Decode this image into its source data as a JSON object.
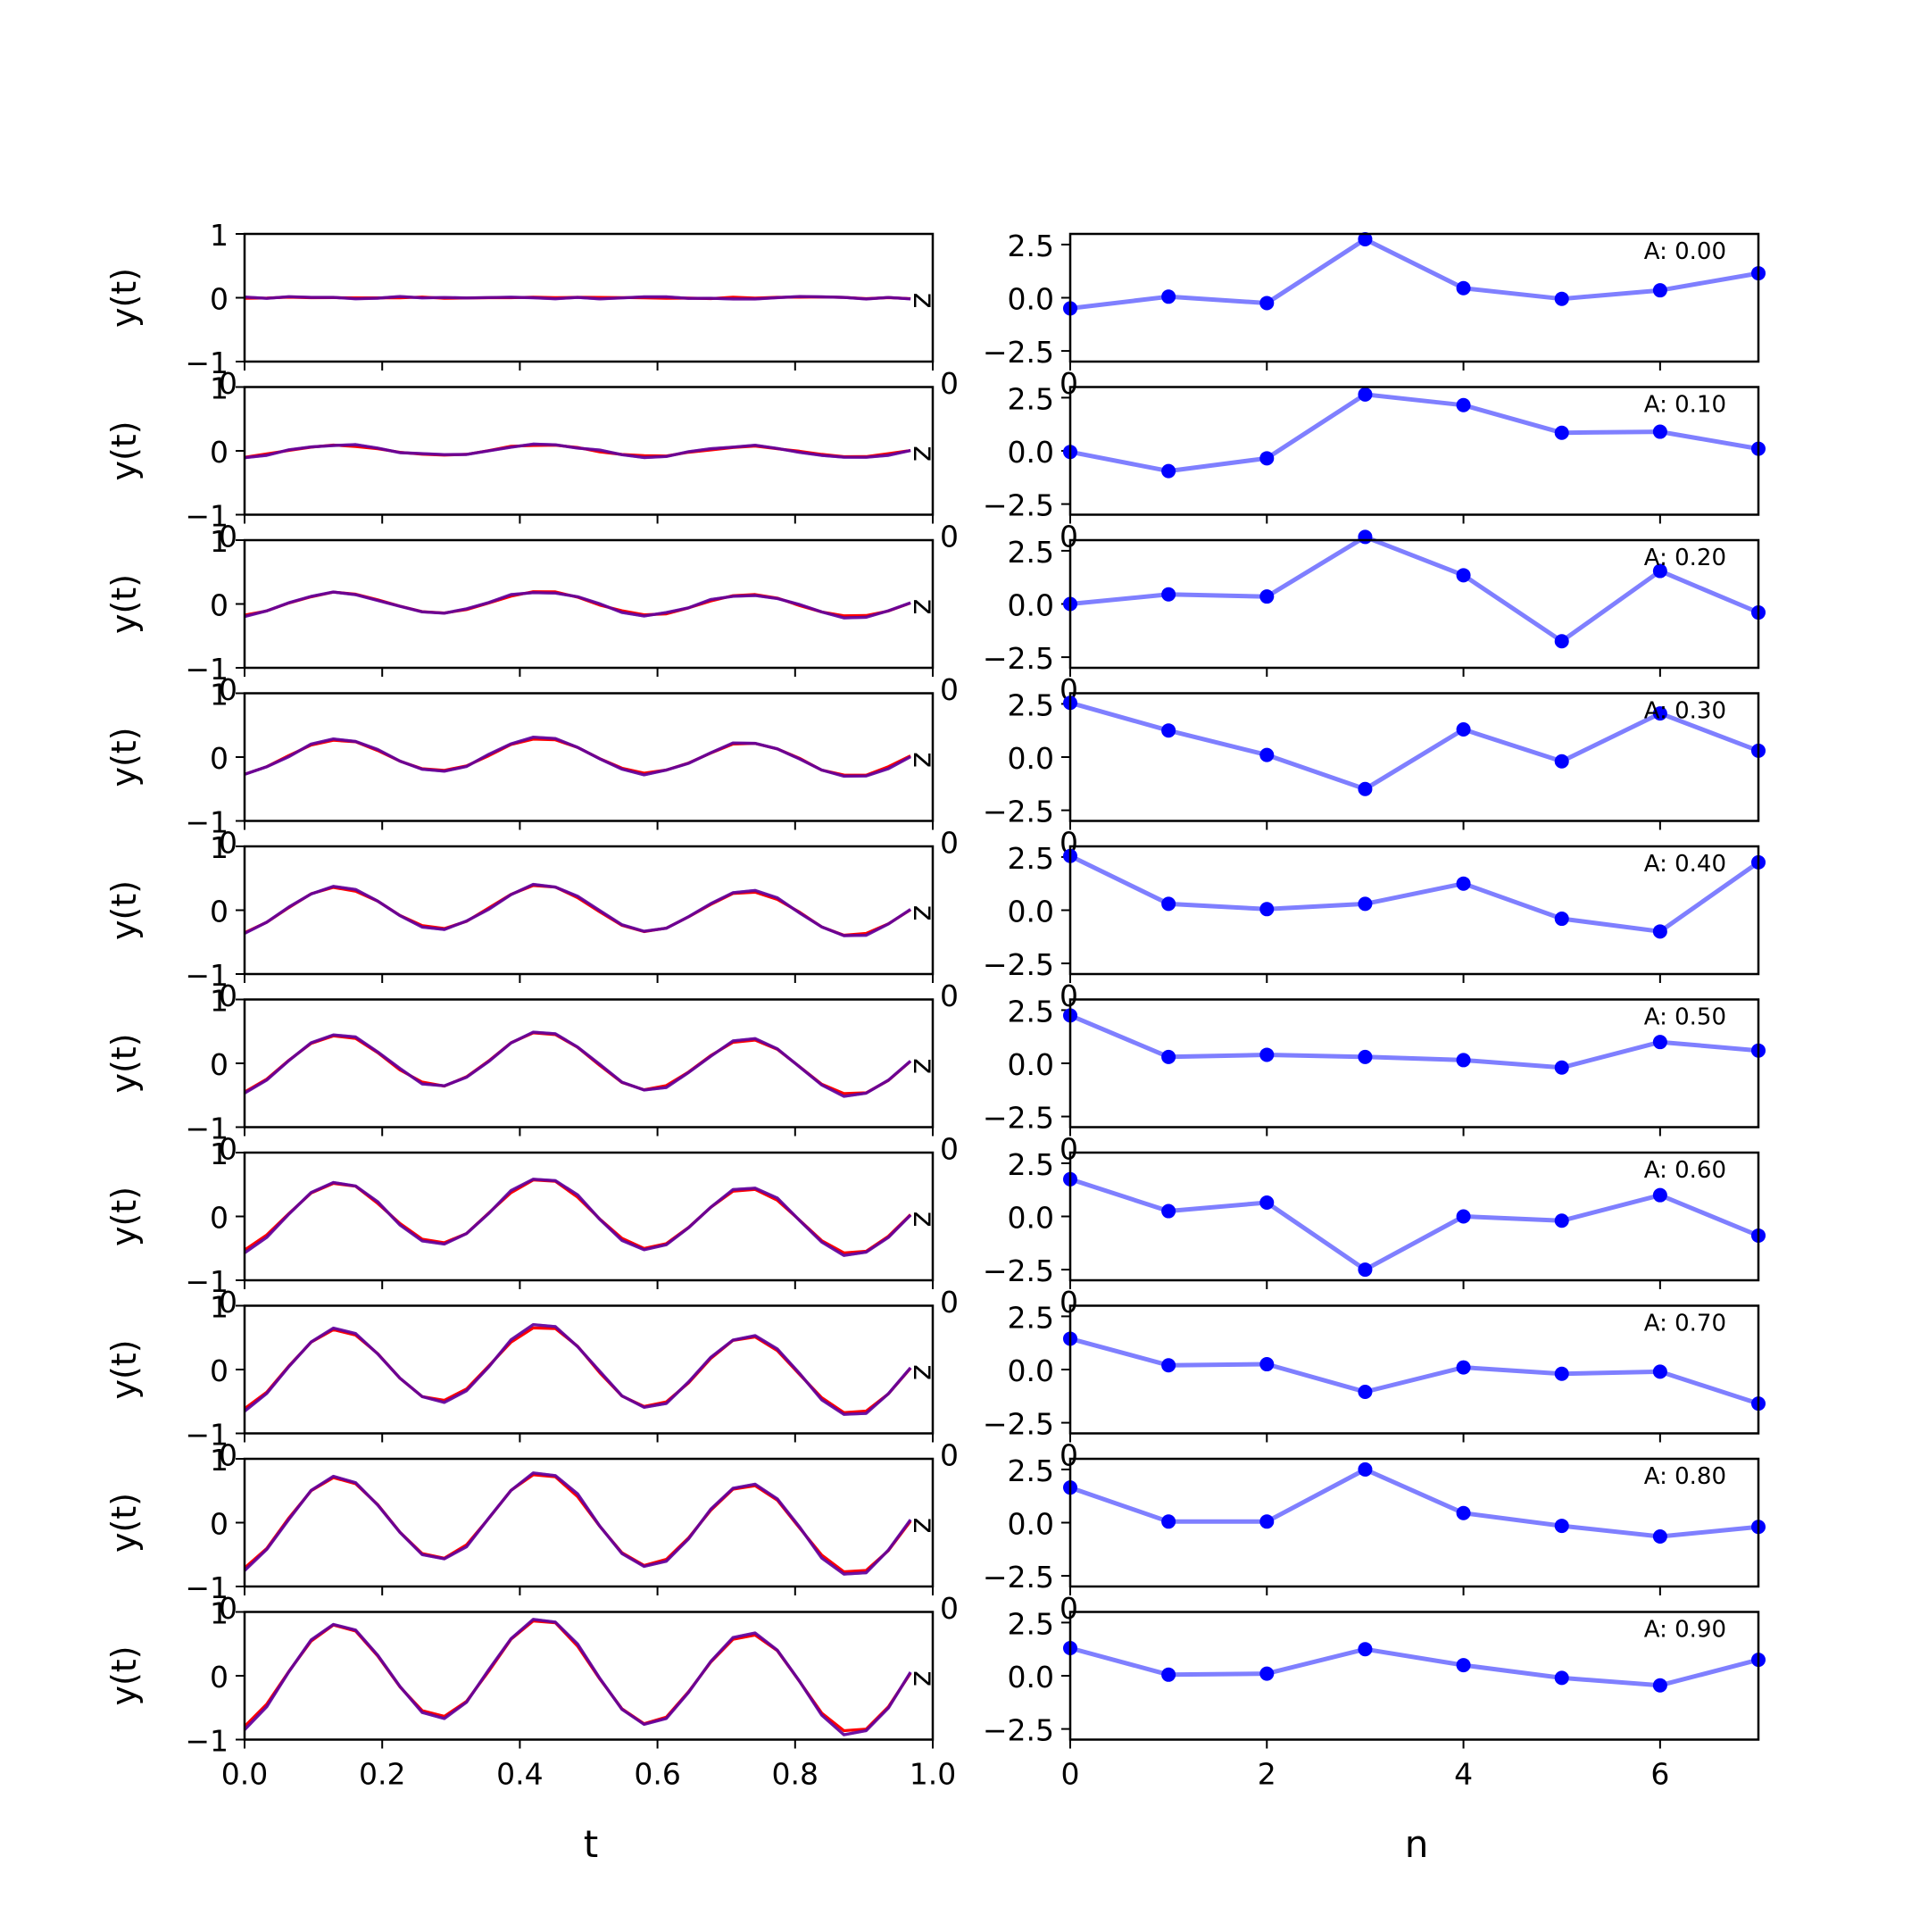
{
  "figure": {
    "left_xlabel": "t",
    "right_xlabel": "n",
    "left_ylabel": "y(t)",
    "z_label": "z",
    "annotation_prefix": "A: "
  },
  "colors": {
    "signal_a": "#ff0000",
    "signal_b": "#0000ff",
    "mix": "#7f007f",
    "right_line": "#0000ff",
    "right_marker": "#0000ff"
  },
  "chart_data": [
    {
      "panel": "left",
      "type": "line",
      "xlabel": "t",
      "ylabel": "y(t)",
      "xlim": [
        0.0,
        1.0
      ],
      "ylim": [
        -1,
        1
      ],
      "xticks": [
        "0.0",
        "0.2",
        "0.4",
        "0.6",
        "0.8",
        "1.0"
      ],
      "yticks": [
        "-1",
        "0",
        "1"
      ],
      "x": [
        0.0,
        0.0323,
        0.0645,
        0.0968,
        0.129,
        0.1613,
        0.1935,
        0.2258,
        0.2581,
        0.2903,
        0.3226,
        0.3548,
        0.3871,
        0.4194,
        0.4516,
        0.4839,
        0.5161,
        0.5484,
        0.5806,
        0.6129,
        0.6452,
        0.6774,
        0.7097,
        0.7419,
        0.7742,
        0.8065,
        0.8387,
        0.871,
        0.9032,
        0.9355,
        0.9677
      ],
      "amplitudes": [
        0.0,
        0.1,
        0.2,
        0.3,
        0.4,
        0.5,
        0.6,
        0.7,
        0.8,
        0.9
      ],
      "series": [
        {
          "amplitude": "0.00"
        },
        {
          "amplitude": "0.10"
        },
        {
          "amplitude": "0.20"
        },
        {
          "amplitude": "0.30"
        },
        {
          "amplitude": "0.40"
        },
        {
          "amplitude": "0.50"
        },
        {
          "amplitude": "0.60"
        },
        {
          "amplitude": "0.70"
        },
        {
          "amplitude": "0.80"
        },
        {
          "amplitude": "0.90"
        }
      ]
    },
    {
      "panel": "right",
      "type": "line",
      "xlabel": "n",
      "xlim": [
        0,
        7
      ],
      "ylim": [
        -3.0,
        3.0
      ],
      "xticks": [
        "0",
        "2",
        "4",
        "6"
      ],
      "yticks": [
        "2.5",
        "0.0",
        "-2.5"
      ],
      "x": [
        0,
        1,
        2,
        3,
        4,
        5,
        6,
        7
      ],
      "series": [
        {
          "annotation": "A: 0.00",
          "values": [
            -0.5,
            0.05,
            -0.25,
            2.75,
            0.45,
            -0.05,
            0.35,
            1.15
          ]
        },
        {
          "annotation": "A: 0.10",
          "values": [
            -0.05,
            -0.95,
            -0.35,
            2.65,
            2.15,
            0.85,
            0.9,
            0.1
          ]
        },
        {
          "annotation": "A: 0.20",
          "values": [
            0.0,
            0.45,
            0.35,
            3.15,
            1.35,
            -1.75,
            1.55,
            -0.4
          ]
        },
        {
          "annotation": "A: 0.30",
          "values": [
            2.55,
            1.25,
            0.1,
            -1.5,
            1.3,
            -0.2,
            2.05,
            0.3
          ]
        },
        {
          "annotation": "A: 0.40",
          "values": [
            2.55,
            0.3,
            0.05,
            0.3,
            1.25,
            -0.4,
            -1.0,
            2.25
          ]
        },
        {
          "annotation": "A: 0.50",
          "values": [
            2.25,
            0.3,
            0.4,
            0.3,
            0.15,
            -0.2,
            1.0,
            0.6
          ]
        },
        {
          "annotation": "A: 0.60",
          "values": [
            1.75,
            0.25,
            0.65,
            -2.5,
            0.0,
            -0.2,
            1.0,
            -0.9
          ]
        },
        {
          "annotation": "A: 0.70",
          "values": [
            1.45,
            0.2,
            0.25,
            -1.05,
            0.1,
            -0.2,
            -0.1,
            -1.6
          ]
        },
        {
          "annotation": "A: 0.80",
          "values": [
            1.65,
            0.05,
            0.05,
            2.5,
            0.45,
            -0.15,
            -0.65,
            -0.2
          ]
        },
        {
          "annotation": "A: 0.90",
          "values": [
            1.3,
            0.05,
            0.1,
            1.25,
            0.5,
            -0.1,
            -0.45,
            0.75
          ]
        }
      ]
    }
  ]
}
